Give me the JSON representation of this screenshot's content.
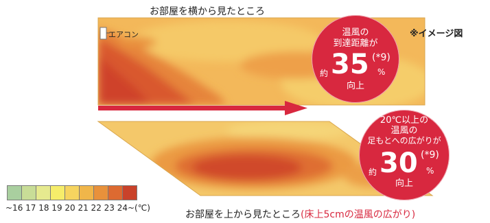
{
  "labels": {
    "side_view_title": "お部屋を横から見たところ",
    "top_view_title": "お部屋を上から見たところ",
    "top_view_subtitle": "(床上5cmの温風の広がり)",
    "image_note": "※イメージ図",
    "aircon": "エアコン"
  },
  "bubble1": {
    "line1": "温風の",
    "line2": "到達距離が",
    "prefix": "約",
    "value": "35",
    "footnote": "(*9)",
    "unit": "%",
    "suffix": "向上"
  },
  "bubble2": {
    "line1": "20℃以上の",
    "line2": "温風の",
    "line3": "足もとへの広がりが",
    "prefix": "約",
    "value": "30",
    "footnote": "(*9)",
    "unit": "%",
    "suffix": "向上"
  },
  "legend": {
    "labels": "~16 17 18 19 20 21 22 23 24~(℃)",
    "colors": [
      "#a9cf9f",
      "#c8dd97",
      "#e6ea8f",
      "#f6ed6a",
      "#f6d45f",
      "#f0b64a",
      "#e8913b",
      "#dd6a31",
      "#c9422a"
    ]
  },
  "colors": {
    "accent": "#d8283f",
    "arrow": "#d8283f",
    "heat_low": "#f5d96a",
    "heat_mid": "#ec9a3e",
    "heat_high": "#d4472c"
  }
}
